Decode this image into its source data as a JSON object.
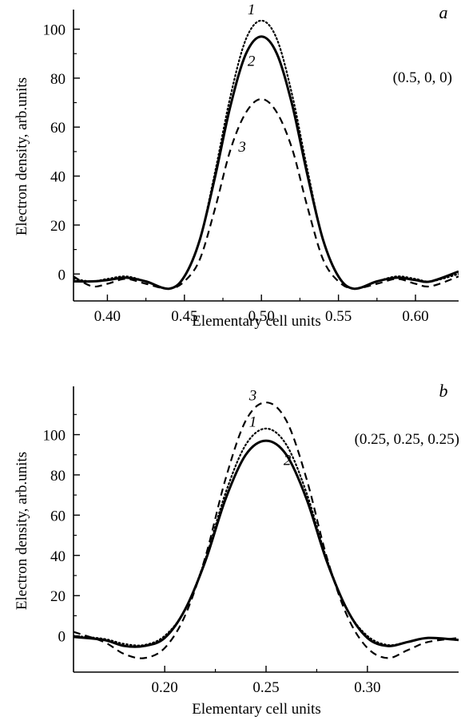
{
  "chart_data": [
    {
      "type": "line",
      "panel_label": "a",
      "annotation": "(0.5, 0, 0)",
      "xlabel": "Elementary cell units",
      "ylabel": "Electron density, arb.units",
      "xlim": [
        0.378,
        0.628
      ],
      "ylim": [
        -11,
        108
      ],
      "xticks": [
        0.4,
        0.45,
        0.5,
        0.55,
        0.6
      ],
      "xtick_labels": [
        "0.40",
        "0.45",
        "0.50",
        "0.55",
        "0.60"
      ],
      "yticks": [
        0,
        20,
        40,
        60,
        80,
        100
      ],
      "ytick_labels": [
        "0",
        "20",
        "40",
        "60",
        "80",
        "100"
      ],
      "grid": false,
      "series": [
        {
          "name": "1",
          "style": "dotted",
          "x": [
            0.378,
            0.39,
            0.4,
            0.412,
            0.425,
            0.44,
            0.45,
            0.46,
            0.47,
            0.48,
            0.49,
            0.5,
            0.51,
            0.52,
            0.53,
            0.54,
            0.55,
            0.56,
            0.575,
            0.588,
            0.6,
            0.61,
            0.628
          ],
          "y": [
            -2,
            -3,
            -2,
            -1,
            -3,
            -6,
            -1,
            14,
            42,
            73,
            96,
            103.5,
            96,
            73,
            42,
            14,
            -1,
            -6,
            -3,
            -1,
            -2,
            -3,
            0
          ]
        },
        {
          "name": "2",
          "style": "solid",
          "x": [
            0.378,
            0.39,
            0.4,
            0.412,
            0.425,
            0.44,
            0.45,
            0.46,
            0.47,
            0.48,
            0.49,
            0.5,
            0.51,
            0.52,
            0.53,
            0.54,
            0.55,
            0.56,
            0.575,
            0.588,
            0.6,
            0.61,
            0.628
          ],
          "y": [
            -3,
            -3,
            -2.5,
            -1.5,
            -3,
            -6,
            -1,
            14,
            40,
            69,
            90,
            97,
            90,
            69,
            40,
            14,
            -1,
            -6,
            -3,
            -1.5,
            -2.5,
            -3,
            1
          ]
        },
        {
          "name": "3",
          "style": "dashed",
          "x": [
            0.378,
            0.39,
            0.4,
            0.412,
            0.425,
            0.44,
            0.45,
            0.46,
            0.47,
            0.48,
            0.49,
            0.5,
            0.51,
            0.52,
            0.53,
            0.54,
            0.55,
            0.56,
            0.575,
            0.588,
            0.6,
            0.61,
            0.628
          ],
          "y": [
            -1,
            -5,
            -4,
            -2,
            -4,
            -6,
            -3,
            6,
            27,
            51,
            66,
            71.5,
            66,
            51,
            27,
            6,
            -3,
            -6,
            -4,
            -2,
            -4,
            -5,
            -1
          ]
        }
      ]
    },
    {
      "type": "line",
      "panel_label": "b",
      "annotation": "(0.25, 0.25, 0.25)",
      "xlabel": "Elementary cell units",
      "ylabel": "Electron density, arb.units",
      "xlim": [
        0.155,
        0.345
      ],
      "ylim": [
        -18,
        124
      ],
      "xticks": [
        0.2,
        0.25,
        0.3
      ],
      "xtick_labels": [
        "0.20",
        "0.25",
        "0.30"
      ],
      "yticks": [
        0,
        20,
        40,
        60,
        80,
        100
      ],
      "ytick_labels": [
        "0",
        "20",
        "40",
        "60",
        "80",
        "100"
      ],
      "grid": false,
      "series": [
        {
          "name": "1",
          "style": "dotted",
          "x": [
            0.155,
            0.17,
            0.18,
            0.19,
            0.2,
            0.21,
            0.22,
            0.23,
            0.24,
            0.25,
            0.26,
            0.27,
            0.28,
            0.29,
            0.3,
            0.31,
            0.32,
            0.33,
            0.345
          ],
          "y": [
            0,
            -1.5,
            -4,
            -4.5,
            0,
            13,
            38,
            71,
            95,
            103,
            95,
            71,
            38,
            13,
            0,
            -4.5,
            -3,
            -1,
            -2
          ]
        },
        {
          "name": "2",
          "style": "solid",
          "x": [
            0.155,
            0.17,
            0.18,
            0.19,
            0.2,
            0.21,
            0.22,
            0.23,
            0.24,
            0.25,
            0.26,
            0.27,
            0.28,
            0.29,
            0.3,
            0.31,
            0.32,
            0.33,
            0.345
          ],
          "y": [
            -0.5,
            -2,
            -5,
            -5,
            -1,
            13,
            37,
            68,
            90,
            97,
            90,
            68,
            37,
            13,
            -1,
            -5,
            -3,
            -1,
            -2
          ]
        },
        {
          "name": "3",
          "style": "dashed",
          "x": [
            0.155,
            0.17,
            0.18,
            0.19,
            0.2,
            0.21,
            0.22,
            0.23,
            0.24,
            0.25,
            0.26,
            0.27,
            0.28,
            0.29,
            0.3,
            0.31,
            0.32,
            0.33,
            0.345
          ],
          "y": [
            2,
            -3,
            -9,
            -11,
            -6,
            10,
            39,
            78,
            107,
            116,
            107,
            78,
            39,
            10,
            -6,
            -11,
            -7,
            -3,
            -1
          ]
        }
      ]
    }
  ],
  "curve_labels": [
    {
      "text": "1",
      "panel": 0,
      "x": 0.4935,
      "y": 106
    },
    {
      "text": "2",
      "panel": 0,
      "x": 0.4935,
      "y": 85
    },
    {
      "text": "3",
      "panel": 0,
      "x": 0.4875,
      "y": 50
    },
    {
      "text": "3",
      "panel": 1,
      "x": 0.2435,
      "y": 117
    },
    {
      "text": "1",
      "panel": 1,
      "x": 0.2435,
      "y": 104
    },
    {
      "text": "2",
      "panel": 1,
      "x": 0.2605,
      "y": 85
    }
  ]
}
